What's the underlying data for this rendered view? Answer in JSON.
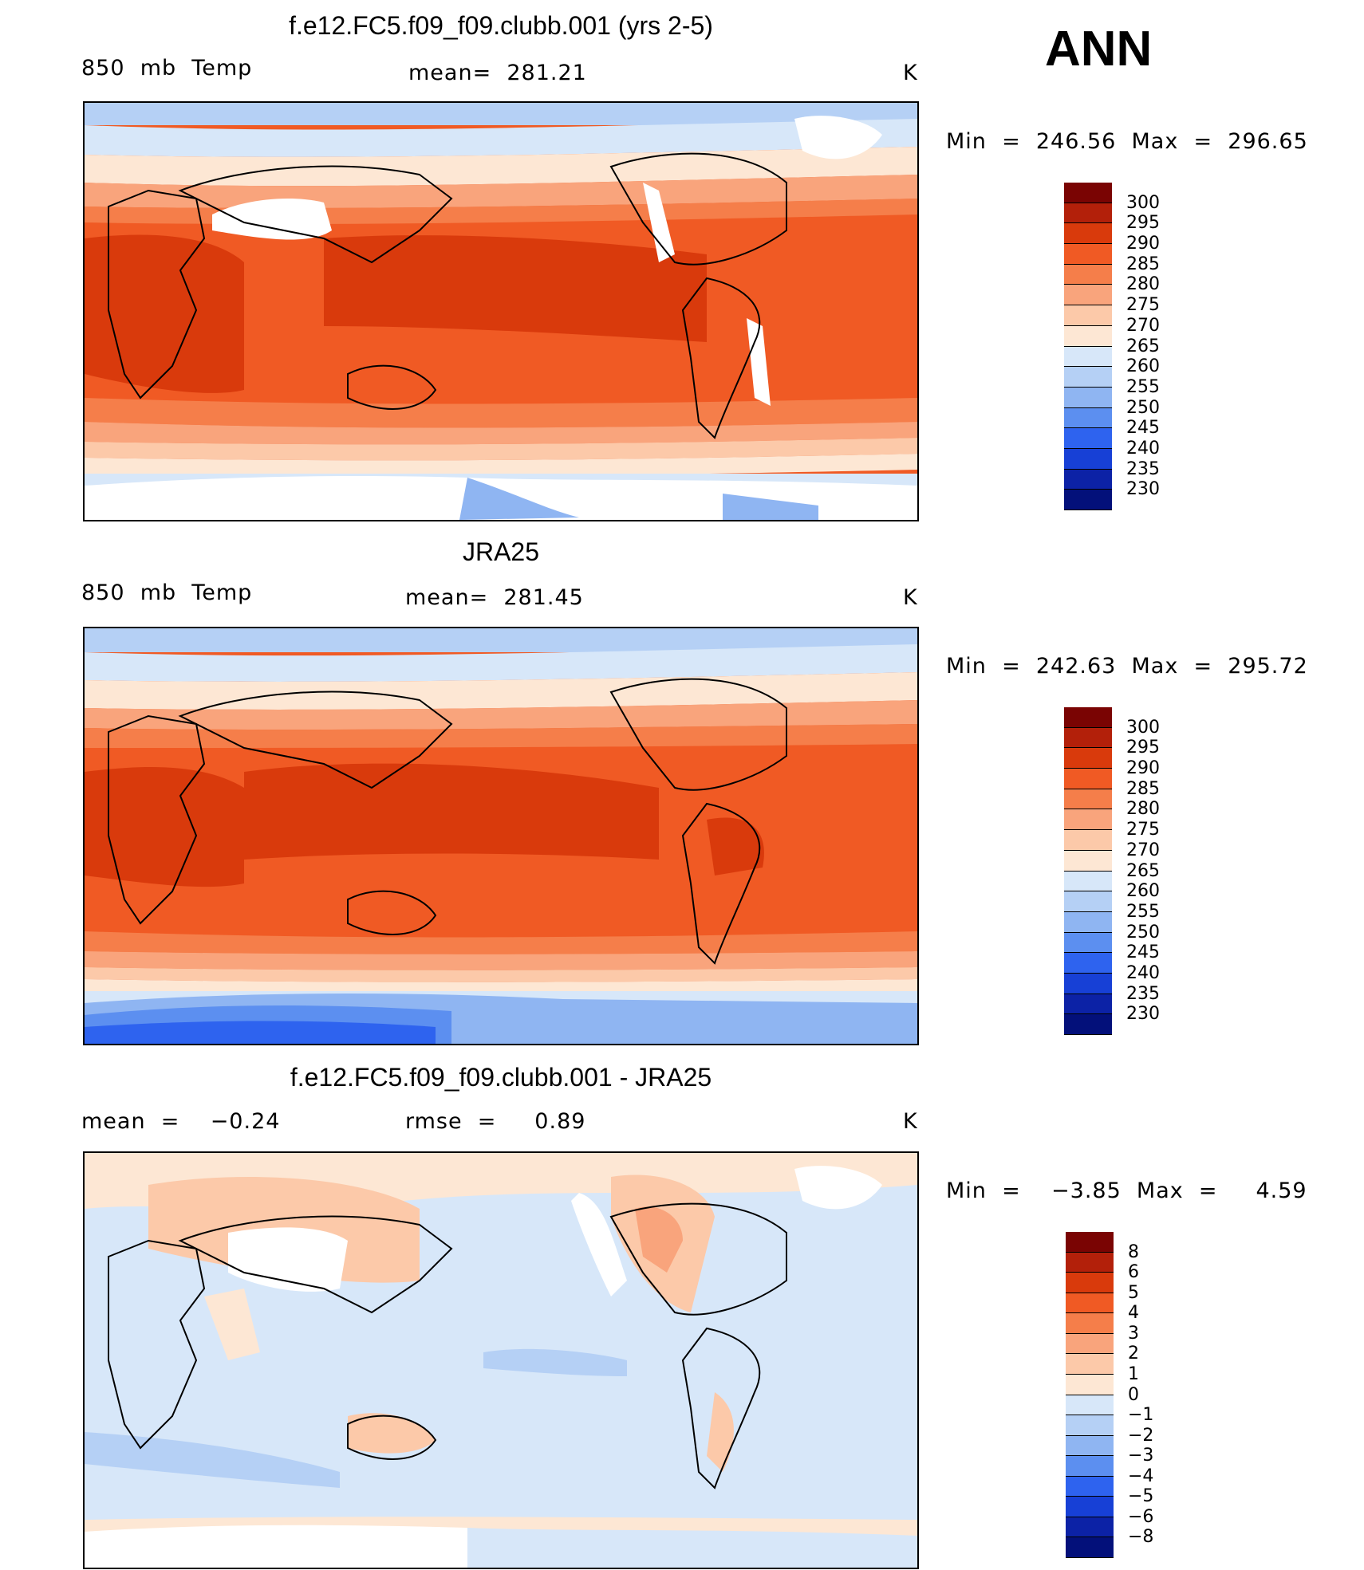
{
  "season": "ANN",
  "panels": [
    {
      "title": "f.e12.FC5.f09_f09.clubb.001 (yrs 2-5)",
      "left_label": "850  mb  Temp",
      "center_label": "mean=  281.21",
      "units": "K",
      "minmax": "Min  =  246.56  Max  =  296.65",
      "colorbar": [
        "300",
        "295",
        "290",
        "285",
        "280",
        "275",
        "270",
        "265",
        "260",
        "255",
        "250",
        "245",
        "240",
        "235",
        "230"
      ]
    },
    {
      "title": "JRA25",
      "left_label": "850  mb  Temp",
      "center_label": "mean=  281.45",
      "units": "K",
      "minmax": "Min  =  242.63  Max  =  295.72",
      "colorbar": [
        "300",
        "295",
        "290",
        "285",
        "280",
        "275",
        "270",
        "265",
        "260",
        "255",
        "250",
        "245",
        "240",
        "235",
        "230"
      ]
    },
    {
      "title": "f.e12.FC5.f09_f09.clubb.001 - JRA25",
      "left_label": "mean  =    −0.24",
      "center_label": "rmse  =     0.89",
      "units": "K",
      "minmax": "Min  =    −3.85  Max  =     4.59",
      "colorbar": [
        "8",
        "6",
        "5",
        "4",
        "3",
        "2",
        "1",
        "0",
        "−1",
        "−2",
        "−3",
        "−4",
        "−5",
        "−6",
        "−8"
      ]
    }
  ],
  "colors": {
    "abs_scale": [
      "#7a0403",
      "#b3200a",
      "#d93a0c",
      "#f05a24",
      "#f57e4a",
      "#f9a47c",
      "#fcc9a9",
      "#fde7d4",
      "#d7e7f9",
      "#b5d0f5",
      "#8fb5f2",
      "#5c8ff0",
      "#2e63ef",
      "#1740d6",
      "#0c22a6",
      "#03107a"
    ],
    "diff_scale": [
      "#7a0403",
      "#b3200a",
      "#d93a0c",
      "#f05a24",
      "#f57e4a",
      "#f9a47c",
      "#fcc9a9",
      "#fde7d4",
      "#d7e7f9",
      "#b5d0f5",
      "#8fb5f2",
      "#5c8ff0",
      "#2e63ef",
      "#1740d6",
      "#0c22a6",
      "#03107a"
    ]
  }
}
